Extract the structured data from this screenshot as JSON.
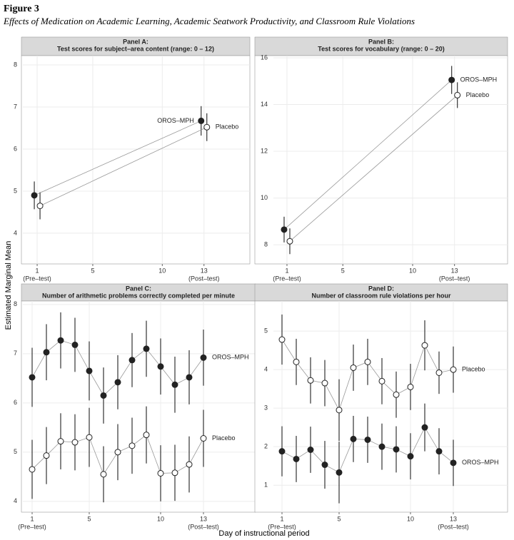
{
  "figure": {
    "label": "Figure 3",
    "caption": "Effects of Medication on Academic Learning, Academic Seatwork Productivity, and Classroom Rule Violations",
    "y_label": "Estimated Marginal Mean",
    "x_label": "Day of instructional period"
  },
  "chart_data": [
    {
      "type": "line",
      "panel_label": "Panel A:",
      "title": "Test scores for subject–area content (range: 0 – 12)",
      "x": [
        1,
        13
      ],
      "xlim": [
        -0.03,
        16.3
      ],
      "xticks": [
        1,
        5,
        10,
        13
      ],
      "xtick_notes": [
        {
          "value": 1,
          "label": "(Pre–test)"
        },
        {
          "value": 13,
          "label": "(Post–test)"
        }
      ],
      "ylim": [
        3.27,
        8.22
      ],
      "yticks": [
        4,
        5,
        6,
        7,
        8
      ],
      "grid": true,
      "dodge": true,
      "series": [
        {
          "name": "OROS–MPH",
          "color": "#222222",
          "marker_fill": "#222222",
          "label_position": "left",
          "values": [
            4.9,
            6.67
          ],
          "errors": [
            0.33,
            0.35
          ]
        },
        {
          "name": "Placebo",
          "color": "#222222",
          "marker_fill": "#ffffff",
          "label_position": "right",
          "values": [
            4.65,
            6.52
          ],
          "errors": [
            0.32,
            0.33
          ]
        }
      ]
    },
    {
      "type": "line",
      "panel_label": "Panel B:",
      "title": "Test scores for vocabulary (range: 0 – 20)",
      "x": [
        1,
        13
      ],
      "xlim": [
        0.03,
        16.8
      ],
      "xticks": [
        1,
        5,
        10,
        13
      ],
      "xtick_notes": [
        {
          "value": 1,
          "label": "(Pre–test)"
        },
        {
          "value": 13,
          "label": "(Post–test)"
        }
      ],
      "ylim": [
        7.18,
        16.09
      ],
      "yticks": [
        8,
        10,
        12,
        14,
        16
      ],
      "grid": true,
      "dodge": true,
      "series": [
        {
          "name": "OROS–MPH",
          "color": "#222222",
          "marker_fill": "#222222",
          "label_position": "right",
          "values": [
            8.65,
            15.05
          ],
          "errors": [
            0.55,
            0.6
          ]
        },
        {
          "name": "Placebo",
          "color": "#222222",
          "marker_fill": "#ffffff",
          "label_position": "right",
          "values": [
            8.15,
            14.4
          ],
          "errors": [
            0.55,
            0.55
          ]
        }
      ]
    },
    {
      "type": "line",
      "panel_label": "Panel C:",
      "title": "Number of arithmetic problems correctly completed per minute",
      "x": [
        1,
        2,
        3,
        4,
        5,
        6,
        7,
        8,
        9,
        10,
        11,
        12,
        13
      ],
      "xlim": [
        0.35,
        16.65
      ],
      "xticks": [
        1,
        5,
        10,
        13
      ],
      "xtick_notes": [
        {
          "value": 1,
          "label": "(Pre–test)"
        },
        {
          "value": 13,
          "label": "(Post–test)"
        }
      ],
      "ylim": [
        3.78,
        8.07
      ],
      "yticks": [
        4,
        5,
        6,
        7,
        8
      ],
      "grid": true,
      "dodge": false,
      "series": [
        {
          "name": "OROS–MPH",
          "color": "#222222",
          "marker_fill": "#222222",
          "label_position": "right",
          "values": [
            6.52,
            7.03,
            7.27,
            7.18,
            6.65,
            6.15,
            6.42,
            6.87,
            7.1,
            6.74,
            6.37,
            6.52,
            6.92
          ],
          "errors": [
            0.6,
            0.57,
            0.57,
            0.55,
            0.6,
            0.57,
            0.55,
            0.55,
            0.57,
            0.57,
            0.57,
            0.55,
            0.57
          ]
        },
        {
          "name": "Placebo",
          "color": "#222222",
          "marker_fill": "#ffffff",
          "label_position": "right",
          "values": [
            4.65,
            4.93,
            5.22,
            5.2,
            5.3,
            4.55,
            5.0,
            5.13,
            5.35,
            4.57,
            4.58,
            4.75,
            5.28
          ],
          "errors": [
            0.6,
            0.58,
            0.57,
            0.57,
            0.6,
            0.57,
            0.57,
            0.57,
            0.58,
            0.57,
            0.57,
            0.57,
            0.58
          ]
        }
      ]
    },
    {
      "type": "line",
      "panel_label": "Panel D:",
      "title": "Number of classroom rule violations per hour",
      "x": [
        1,
        2,
        3,
        4,
        5,
        6,
        7,
        8,
        9,
        10,
        11,
        12,
        13
      ],
      "xlim": [
        0.4,
        16.8
      ],
      "xticks": [
        1,
        5,
        10,
        13
      ],
      "xtick_notes": [
        {
          "value": 1,
          "label": "(Pre–test)"
        },
        {
          "value": 13,
          "label": "(Post–test)"
        }
      ],
      "ylim": [
        0.3,
        5.78
      ],
      "yticks": [
        1,
        2,
        3,
        4,
        5
      ],
      "grid": true,
      "dodge": false,
      "series": [
        {
          "name": "Placebo",
          "color": "#222222",
          "marker_fill": "#ffffff",
          "label_position": "right",
          "values": [
            4.78,
            4.2,
            3.72,
            3.65,
            2.95,
            4.05,
            4.2,
            3.7,
            3.35,
            3.55,
            4.63,
            3.92,
            4.0
          ],
          "errors": [
            0.65,
            0.6,
            0.6,
            0.6,
            0.8,
            0.6,
            0.6,
            0.6,
            0.6,
            0.6,
            0.65,
            0.55,
            0.6
          ]
        },
        {
          "name": "OROS–MPH",
          "color": "#222222",
          "marker_fill": "#222222",
          "label_position": "right",
          "values": [
            1.88,
            1.68,
            1.92,
            1.53,
            1.33,
            2.2,
            2.18,
            2.0,
            1.93,
            1.75,
            2.5,
            1.88,
            1.58
          ],
          "errors": [
            0.65,
            0.6,
            0.6,
            0.62,
            0.8,
            0.6,
            0.6,
            0.6,
            0.6,
            0.6,
            0.62,
            0.6,
            0.6
          ]
        }
      ]
    }
  ]
}
